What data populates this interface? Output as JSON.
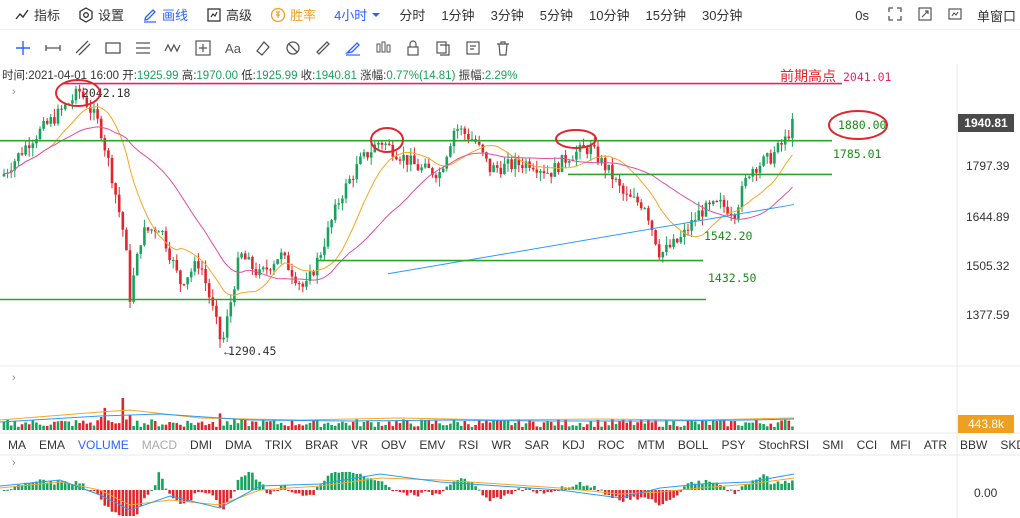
{
  "toolbar": {
    "indicators": "指标",
    "settings": "设置",
    "draw": "画线",
    "advanced": "高级",
    "winrate": "胜率",
    "period": "4小时",
    "timeframes": [
      "分时",
      "1分钟",
      "3分钟",
      "5分钟",
      "10分钟",
      "15分钟",
      "30分钟"
    ],
    "zero_s": "0s",
    "single_window": "单窗口"
  },
  "draw_tools": [
    "crosshair",
    "horizontal-line",
    "trend-line",
    "rectangle",
    "parallel-lines",
    "wave",
    "measure",
    "text",
    "eraser",
    "magnet",
    "ruler",
    "brush",
    "candles",
    "lock",
    "copy",
    "note",
    "delete"
  ],
  "draw_text_tool_label": "Aa",
  "ohlc": {
    "time_label": "时间:",
    "time": "2021-04-01 16:00",
    "open_label": "开:",
    "open": "1925.99",
    "high_label": "高:",
    "high": "1970.00",
    "low_label": "低:",
    "low": "1925.99",
    "close_label": "收:",
    "close": "1940.81",
    "change_label": "涨幅:",
    "change": "0.77%(14.81)",
    "amp_label": "振幅:",
    "amp": "2.29%"
  },
  "price_axis": [
    "1797.39",
    "1644.89",
    "1505.32",
    "1377.59"
  ],
  "last_price": "1940.81",
  "volume_value": "443.8k",
  "macd_zero": "0.00",
  "annotations": {
    "previous_high_title": "前期高点",
    "previous_high": "2041.01",
    "high_marker": "2042.18",
    "low_marker": "1290.45",
    "level_1880": "1880.00",
    "level_1785": "1785.01",
    "level_1542": "1542.20",
    "level_1432": "1432.50"
  },
  "indicators": [
    "MA",
    "EMA",
    "VOLUME",
    "MACD",
    "DMI",
    "DMA",
    "TRIX",
    "BRAR",
    "VR",
    "OBV",
    "EMV",
    "RSI",
    "WR",
    "SAR",
    "KDJ",
    "ROC",
    "MTM",
    "BOLL",
    "PSY",
    "StochRSI",
    "SMI",
    "CCI",
    "MFI",
    "ATR",
    "BBW",
    "SKDJ"
  ],
  "active_indicator": "VOLUME",
  "dim_indicator": "MACD",
  "colors": {
    "up": "#17a35b",
    "down": "#e0262c",
    "accent": "#2962ff",
    "support_line": "#2aa52a",
    "resistance_line": "#e0266a",
    "ma_orange": "#f5a623",
    "ma_pink": "#e04fa0",
    "ma_blue": "#2a9df4"
  },
  "chart_data": {
    "type": "candlestick",
    "series_note": "",
    "horizontal_levels": [
      2041.01,
      1880.0,
      1785.01,
      1542.2,
      1432.5
    ],
    "ylim": [
      1290,
      2045
    ]
  }
}
